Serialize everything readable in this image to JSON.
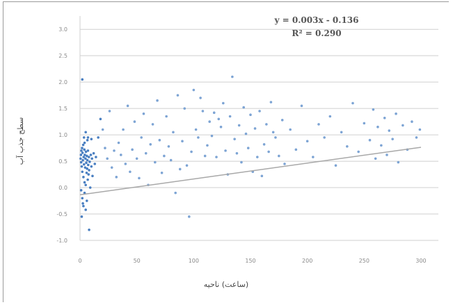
{
  "chart_data": {
    "type": "scatter",
    "title": "",
    "xlabel": "(ساعت) ناحیه",
    "ylabel": "سطح جذب آب",
    "xlim": [
      0,
      300
    ],
    "ylim": [
      -1.0,
      3.2
    ],
    "xticks": [
      0,
      50,
      100,
      150,
      200,
      250,
      300
    ],
    "yticks": [
      -1.0,
      -0.5,
      0.0,
      0.5,
      1.0,
      1.5,
      2.0,
      2.5,
      3.0
    ],
    "grid": "horizontal",
    "legend": "none",
    "point_color": "#4a7fc1",
    "trendline_color": "#a8a8a8",
    "equation": "y = 0.003x - 0.136",
    "r_squared": "R² = 0.290",
    "trendline": {
      "slope": 0.003,
      "intercept": -0.136
    },
    "points": [
      [
        0.5,
        0.55
      ],
      [
        0.8,
        0.62
      ],
      [
        1.0,
        0.48
      ],
      [
        1.2,
        0.7
      ],
      [
        1.5,
        0.4
      ],
      [
        1.8,
        0.75
      ],
      [
        2.0,
        0.3
      ],
      [
        2.2,
        0.66
      ],
      [
        2.5,
        0.52
      ],
      [
        2.8,
        0.81
      ],
      [
        3.0,
        0.2
      ],
      [
        3.2,
        0.58
      ],
      [
        3.5,
        0.44
      ],
      [
        3.8,
        0.72
      ],
      [
        4.0,
        0.1
      ],
      [
        4.2,
        0.62
      ],
      [
        4.5,
        0.38
      ],
      [
        4.8,
        0.55
      ],
      [
        5.0,
        0.05
      ],
      [
        5.2,
        0.68
      ],
      [
        5.5,
        0.47
      ],
      [
        5.8,
        0.28
      ],
      [
        6.0,
        0.6
      ],
      [
        6.2,
        0.36
      ],
      [
        6.5,
        0.52
      ],
      [
        6.8,
        0.15
      ],
      [
        7.0,
        0.7
      ],
      [
        7.2,
        0.43
      ],
      [
        7.5,
        0.25
      ],
      [
        7.8,
        0.58
      ],
      [
        8.0,
        0.33
      ],
      [
        8.5,
        0.49
      ],
      [
        9.0,
        0.0
      ],
      [
        9.5,
        0.62
      ],
      [
        10.0,
        0.4
      ],
      [
        10.5,
        0.55
      ],
      [
        11.0,
        0.22
      ],
      [
        12.0,
        0.65
      ],
      [
        13.0,
        0.45
      ],
      [
        14.0,
        0.58
      ],
      [
        1.0,
        -0.05
      ],
      [
        2.0,
        -0.2
      ],
      [
        3.0,
        -0.35
      ],
      [
        4.0,
        -0.1
      ],
      [
        5.0,
        -0.42
      ],
      [
        6.0,
        -0.25
      ],
      [
        1.5,
        -0.55
      ],
      [
        2.5,
        -0.3
      ],
      [
        3.5,
        0.95
      ],
      [
        5.0,
        1.05
      ],
      [
        6.5,
        0.9
      ],
      [
        2.0,
        2.05
      ],
      [
        8.0,
        -0.8
      ],
      [
        4.0,
        0.85
      ],
      [
        7.0,
        0.95
      ],
      [
        10.0,
        0.92
      ],
      [
        16.0,
        0.95
      ],
      [
        18.0,
        1.3
      ],
      [
        20.0,
        1.1
      ],
      [
        22.0,
        0.75
      ],
      [
        24.0,
        0.55
      ],
      [
        26.0,
        1.45
      ],
      [
        28.0,
        0.38
      ],
      [
        30.0,
        0.7
      ],
      [
        32.0,
        0.2
      ],
      [
        34.0,
        0.85
      ],
      [
        36.0,
        0.62
      ],
      [
        38.0,
        1.1
      ],
      [
        40.0,
        0.45
      ],
      [
        42.0,
        1.55
      ],
      [
        44.0,
        0.3
      ],
      [
        46.0,
        0.72
      ],
      [
        48.0,
        1.25
      ],
      [
        50.0,
        0.55
      ],
      [
        52.0,
        0.18
      ],
      [
        54.0,
        0.95
      ],
      [
        56.0,
        1.4
      ],
      [
        58.0,
        0.65
      ],
      [
        60.0,
        0.05
      ],
      [
        62.0,
        0.82
      ],
      [
        64.0,
        1.2
      ],
      [
        66.0,
        0.48
      ],
      [
        68.0,
        1.65
      ],
      [
        70.0,
        0.9
      ],
      [
        72.0,
        0.28
      ],
      [
        74.0,
        0.6
      ],
      [
        76.0,
        1.35
      ],
      [
        78.0,
        0.78
      ],
      [
        80.0,
        0.52
      ],
      [
        82.0,
        1.05
      ],
      [
        84.0,
        -0.1
      ],
      [
        86.0,
        1.75
      ],
      [
        88.0,
        0.35
      ],
      [
        90.0,
        0.88
      ],
      [
        92.0,
        1.5
      ],
      [
        94.0,
        0.42
      ],
      [
        96.0,
        -0.55
      ],
      [
        98.0,
        0.68
      ],
      [
        100.0,
        1.85
      ],
      [
        102.0,
        1.1
      ],
      [
        104.0,
        0.95
      ],
      [
        106.0,
        1.7
      ],
      [
        108.0,
        1.45
      ],
      [
        110.0,
        0.6
      ],
      [
        112.0,
        0.8
      ],
      [
        114.0,
        1.25
      ],
      [
        116.0,
        0.98
      ],
      [
        118.0,
        1.42
      ],
      [
        120.0,
        0.58
      ],
      [
        122.0,
        1.3
      ],
      [
        124.0,
        1.15
      ],
      [
        126.0,
        1.6
      ],
      [
        128.0,
        0.7
      ],
      [
        130.0,
        0.25
      ],
      [
        132.0,
        1.35
      ],
      [
        134.0,
        2.1
      ],
      [
        136.0,
        0.92
      ],
      [
        138.0,
        0.65
      ],
      [
        140.0,
        1.18
      ],
      [
        142.0,
        0.48
      ],
      [
        144.0,
        1.52
      ],
      [
        146.0,
        1.02
      ],
      [
        148.0,
        0.75
      ],
      [
        150.0,
        1.38
      ],
      [
        152.0,
        0.3
      ],
      [
        154.0,
        1.12
      ],
      [
        156.0,
        0.58
      ],
      [
        158.0,
        1.45
      ],
      [
        160.0,
        0.22
      ],
      [
        162.0,
        0.82
      ],
      [
        164.0,
        1.2
      ],
      [
        166.0,
        0.68
      ],
      [
        168.0,
        1.62
      ],
      [
        170.0,
        1.05
      ],
      [
        172.0,
        0.95
      ],
      [
        175.0,
        0.6
      ],
      [
        178.0,
        1.28
      ],
      [
        180.0,
        0.45
      ],
      [
        185.0,
        1.1
      ],
      [
        190.0,
        0.72
      ],
      [
        195.0,
        1.55
      ],
      [
        200.0,
        0.88
      ],
      [
        205.0,
        0.58
      ],
      [
        210.0,
        1.2
      ],
      [
        215.0,
        0.95
      ],
      [
        220.0,
        1.35
      ],
      [
        225.0,
        0.42
      ],
      [
        230.0,
        1.05
      ],
      [
        235.0,
        0.78
      ],
      [
        240.0,
        1.6
      ],
      [
        245.0,
        0.68
      ],
      [
        250.0,
        1.22
      ],
      [
        255.0,
        0.9
      ],
      [
        258.0,
        1.48
      ],
      [
        260.0,
        0.55
      ],
      [
        262.0,
        1.15
      ],
      [
        265.0,
        0.8
      ],
      [
        268.0,
        1.32
      ],
      [
        270.0,
        0.62
      ],
      [
        272.0,
        1.08
      ],
      [
        275.0,
        0.92
      ],
      [
        278.0,
        1.4
      ],
      [
        280.0,
        0.48
      ],
      [
        284.0,
        1.18
      ],
      [
        288.0,
        0.72
      ],
      [
        292.0,
        1.25
      ],
      [
        296.0,
        0.95
      ],
      [
        299.0,
        1.1
      ]
    ]
  }
}
